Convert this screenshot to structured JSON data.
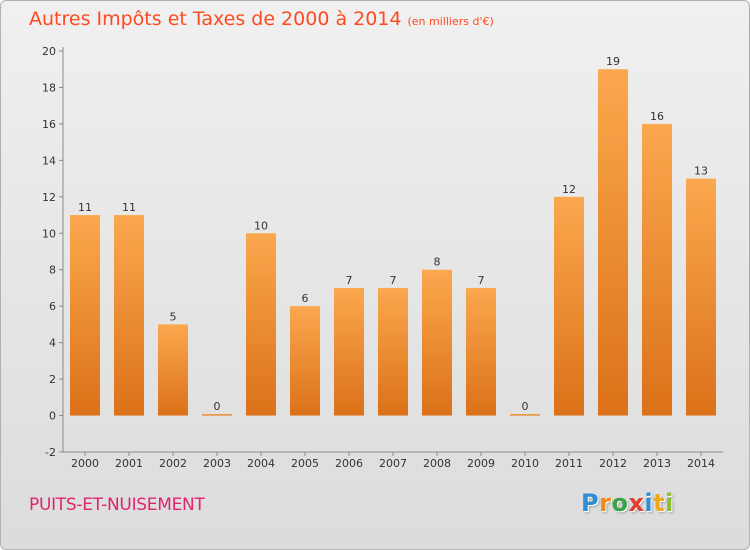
{
  "title": "Autres Impôts et Taxes de 2000 à 2014",
  "subtitle": "(en milliers d'€)",
  "commune": "PUITS-ET-NUISEMENT",
  "logo": {
    "letters": [
      "P",
      "r",
      "o",
      "x",
      "i",
      "t",
      "i"
    ],
    "colors": [
      "#2e8fd4",
      "#f08a1a",
      "#3aa34a",
      "#e73c2a",
      "#2e8fd4",
      "#f0a81a",
      "#8cbf2f"
    ]
  },
  "colors": {
    "bar_top": "#fba84e",
    "bar_bottom": "#db7119",
    "title": "#ff4a21",
    "commune": "#e0246e"
  },
  "chart_data": {
    "type": "bar",
    "categories": [
      "2000",
      "2001",
      "2002",
      "2003",
      "2004",
      "2005",
      "2006",
      "2007",
      "2008",
      "2009",
      "2010",
      "2011",
      "2012",
      "2013",
      "2014"
    ],
    "values": [
      11,
      11,
      5,
      0,
      10,
      6,
      7,
      7,
      8,
      7,
      0,
      12,
      19,
      16,
      13
    ],
    "title": "Autres Impôts et Taxes de 2000 à 2014",
    "ylim": [
      -2,
      20
    ],
    "yticks": [
      -2,
      0,
      2,
      4,
      6,
      8,
      10,
      12,
      14,
      16,
      18,
      20
    ],
    "grid": false
  }
}
